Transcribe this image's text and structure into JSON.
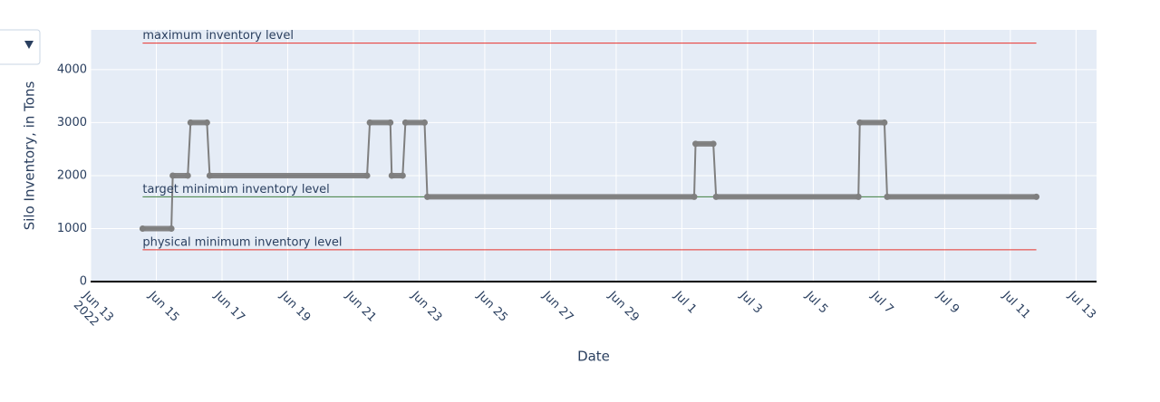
{
  "chart_data": {
    "type": "line",
    "x_title": "Date",
    "y_title": "Silo Inventory, in Tons",
    "xlim": [
      "2022-06-13 00:00",
      "2022-07-13 15:00"
    ],
    "xticks": [
      {
        "value": "2022-06-13 00:00",
        "label": "Jun 13\n2022"
      },
      {
        "value": "2022-06-15 00:00",
        "label": "Jun 15"
      },
      {
        "value": "2022-06-17 00:00",
        "label": "Jun 17"
      },
      {
        "value": "2022-06-19 00:00",
        "label": "Jun 19"
      },
      {
        "value": "2022-06-21 00:00",
        "label": "Jun 21"
      },
      {
        "value": "2022-06-23 00:00",
        "label": "Jun 23"
      },
      {
        "value": "2022-06-25 00:00",
        "label": "Jun 25"
      },
      {
        "value": "2022-06-27 00:00",
        "label": "Jun 27"
      },
      {
        "value": "2022-06-29 00:00",
        "label": "Jun 29"
      },
      {
        "value": "2022-07-01 00:00",
        "label": "Jul 1"
      },
      {
        "value": "2022-07-03 00:00",
        "label": "Jul 3"
      },
      {
        "value": "2022-07-05 00:00",
        "label": "Jul 5"
      },
      {
        "value": "2022-07-07 00:00",
        "label": "Jul 7"
      },
      {
        "value": "2022-07-09 00:00",
        "label": "Jul 9"
      },
      {
        "value": "2022-07-11 00:00",
        "label": "Jul 11"
      },
      {
        "value": "2022-07-13 00:00",
        "label": "Jul 13"
      }
    ],
    "ylim": [
      0,
      4750
    ],
    "yticks": [
      0,
      1000,
      2000,
      3000,
      4000
    ],
    "grid": true,
    "x": [
      "2022-06-14 14:00",
      "2022-06-15 11:00",
      "2022-06-15 12:00",
      "2022-06-15 23:00",
      "2022-06-16 01:00",
      "2022-06-16 13:00",
      "2022-06-16 15:00",
      "2022-06-21 10:00",
      "2022-06-21 12:00",
      "2022-06-22 03:00",
      "2022-06-22 04:00",
      "2022-06-22 12:00",
      "2022-06-22 14:00",
      "2022-06-23 04:00",
      "2022-06-23 06:00",
      "2022-07-01 09:00",
      "2022-07-01 10:00",
      "2022-07-01 23:00",
      "2022-07-02 01:00",
      "2022-07-06 09:00",
      "2022-07-06 10:00",
      "2022-07-07 04:00",
      "2022-07-07 06:00",
      "2022-07-11 19:00"
    ],
    "series": [
      {
        "color": "#7f7f7f",
        "values": [
          1000,
          1000,
          2000,
          2000,
          3000,
          3000,
          2000,
          2000,
          3000,
          3000,
          2000,
          2000,
          3000,
          3000,
          1600,
          1600,
          2600,
          2600,
          1600,
          1600,
          3000,
          3000,
          1600,
          1600
        ]
      }
    ],
    "reference_lines": [
      {
        "label": "maximum inventory level",
        "value": 4500,
        "color": "#e8312a"
      },
      {
        "label": "target minimum inventory level",
        "value": 1600,
        "color": "#3f7f3f"
      },
      {
        "label": "physical minimum inventory level",
        "value": 600,
        "color": "#e8312a"
      }
    ]
  }
}
